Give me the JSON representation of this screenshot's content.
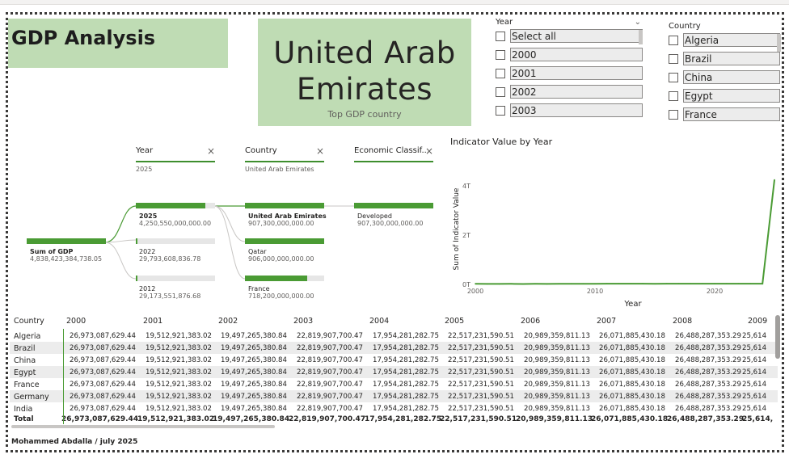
{
  "header": {
    "title": "GDP Analysis",
    "top_country": "United Arab Emirates",
    "top_country_caption": "Top GDP country"
  },
  "slicers": {
    "year": {
      "title": "Year",
      "items": [
        "Select all",
        "2000",
        "2001",
        "2002",
        "2003"
      ]
    },
    "country": {
      "title": "Country",
      "items": [
        "Algeria",
        "Brazil",
        "China",
        "Egypt",
        "France"
      ]
    }
  },
  "decomposition": {
    "root": {
      "label": "Sum of GDP",
      "value": "4,838,423,384,738.05"
    },
    "levels": [
      {
        "title": "Year",
        "selected": "2025",
        "nodes": [
          {
            "label": "2025",
            "value": "4,250,550,000,000.00",
            "share": 0.88,
            "active": true
          },
          {
            "label": "2022",
            "value": "29,793,608,836.78",
            "share": 0.006,
            "active": false
          },
          {
            "label": "2012",
            "value": "29,173,551,876.68",
            "share": 0.006,
            "active": false
          }
        ]
      },
      {
        "title": "Country",
        "selected": "United Arab Emirates",
        "nodes": [
          {
            "label": "United Arab Emirates",
            "value": "907,300,000,000.00",
            "share": 1.0,
            "active": true
          },
          {
            "label": "Qatar",
            "value": "906,000,000,000.00",
            "share": 1.0,
            "active": false
          },
          {
            "label": "France",
            "value": "718,200,000,000.00",
            "share": 0.79,
            "active": false
          }
        ]
      },
      {
        "title": "Economic Classif...",
        "selected": "",
        "nodes": [
          {
            "label": "Developed",
            "value": "907,300,000,000.00",
            "share": 1.0,
            "active": false
          }
        ]
      }
    ]
  },
  "chart_data": {
    "type": "line",
    "title": "Indicator Value by Year",
    "xlabel": "Year",
    "ylabel": "Sum of Indicator Value",
    "x_ticks": [
      "2000",
      "2010",
      "2020"
    ],
    "y_ticks": [
      "0T",
      "2T",
      "4T"
    ],
    "ylim": [
      0,
      4.5
    ],
    "xlim": [
      2000,
      2025
    ],
    "series": [
      {
        "name": "",
        "color": "#4a9b34",
        "x": [
          2000,
          2001,
          2002,
          2003,
          2004,
          2005,
          2006,
          2007,
          2008,
          2009,
          2010,
          2011,
          2012,
          2013,
          2014,
          2015,
          2016,
          2017,
          2018,
          2019,
          2020,
          2021,
          2022,
          2023,
          2024,
          2025
        ],
        "values": [
          0.027,
          0.02,
          0.019,
          0.023,
          0.018,
          0.023,
          0.021,
          0.026,
          0.026,
          0.026,
          0.027,
          0.028,
          0.029,
          0.028,
          0.028,
          0.027,
          0.028,
          0.028,
          0.029,
          0.029,
          0.028,
          0.029,
          0.03,
          0.029,
          0.029,
          4.25
        ]
      }
    ]
  },
  "matrix": {
    "row_header": "Country",
    "columns": [
      "2000",
      "2001",
      "2002",
      "2003",
      "2004",
      "2005",
      "2006",
      "2007",
      "2008",
      "2009"
    ],
    "rows": [
      {
        "country": "Algeria",
        "values": [
          "26,973,087,629.44",
          "19,512,921,383.02",
          "19,497,265,380.84",
          "22,819,907,700.47",
          "17,954,281,282.75",
          "22,517,231,590.51",
          "20,989,359,811.13",
          "26,071,885,430.18",
          "26,488,287,353.29",
          "25,614"
        ]
      },
      {
        "country": "Brazil",
        "values": [
          "26,973,087,629.44",
          "19,512,921,383.02",
          "19,497,265,380.84",
          "22,819,907,700.47",
          "17,954,281,282.75",
          "22,517,231,590.51",
          "20,989,359,811.13",
          "26,071,885,430.18",
          "26,488,287,353.29",
          "25,614"
        ]
      },
      {
        "country": "China",
        "values": [
          "26,973,087,629.44",
          "19,512,921,383.02",
          "19,497,265,380.84",
          "22,819,907,700.47",
          "17,954,281,282.75",
          "22,517,231,590.51",
          "20,989,359,811.13",
          "26,071,885,430.18",
          "26,488,287,353.29",
          "25,614"
        ]
      },
      {
        "country": "Egypt",
        "values": [
          "26,973,087,629.44",
          "19,512,921,383.02",
          "19,497,265,380.84",
          "22,819,907,700.47",
          "17,954,281,282.75",
          "22,517,231,590.51",
          "20,989,359,811.13",
          "26,071,885,430.18",
          "26,488,287,353.29",
          "25,614"
        ]
      },
      {
        "country": "France",
        "values": [
          "26,973,087,629.44",
          "19,512,921,383.02",
          "19,497,265,380.84",
          "22,819,907,700.47",
          "17,954,281,282.75",
          "22,517,231,590.51",
          "20,989,359,811.13",
          "26,071,885,430.18",
          "26,488,287,353.29",
          "25,614"
        ]
      },
      {
        "country": "Germany",
        "values": [
          "26,973,087,629.44",
          "19,512,921,383.02",
          "19,497,265,380.84",
          "22,819,907,700.47",
          "17,954,281,282.75",
          "22,517,231,590.51",
          "20,989,359,811.13",
          "26,071,885,430.18",
          "26,488,287,353.29",
          "25,614"
        ]
      },
      {
        "country": "India",
        "values": [
          "26,973,087,629.44",
          "19,512,921,383.02",
          "19,497,265,380.84",
          "22,819,907,700.47",
          "17,954,281,282.75",
          "22,517,231,590.51",
          "20,989,359,811.13",
          "26,071,885,430.18",
          "26,488,287,353.29",
          "25,614"
        ]
      }
    ],
    "total": {
      "label": "Total",
      "values": [
        "26,973,087,629.44",
        "19,512,921,383.02",
        "19,497,265,380.84",
        "22,819,907,700.47",
        "17,954,281,282.75",
        "22,517,231,590.51",
        "20,989,359,811.13",
        "26,071,885,430.18",
        "26,488,287,353.29",
        "25,614,"
      ]
    }
  },
  "footer": {
    "author": "Mohammed Abdalla / july 2025"
  },
  "colors": {
    "accent": "#4a9b34",
    "card": "#bfdcb4"
  }
}
